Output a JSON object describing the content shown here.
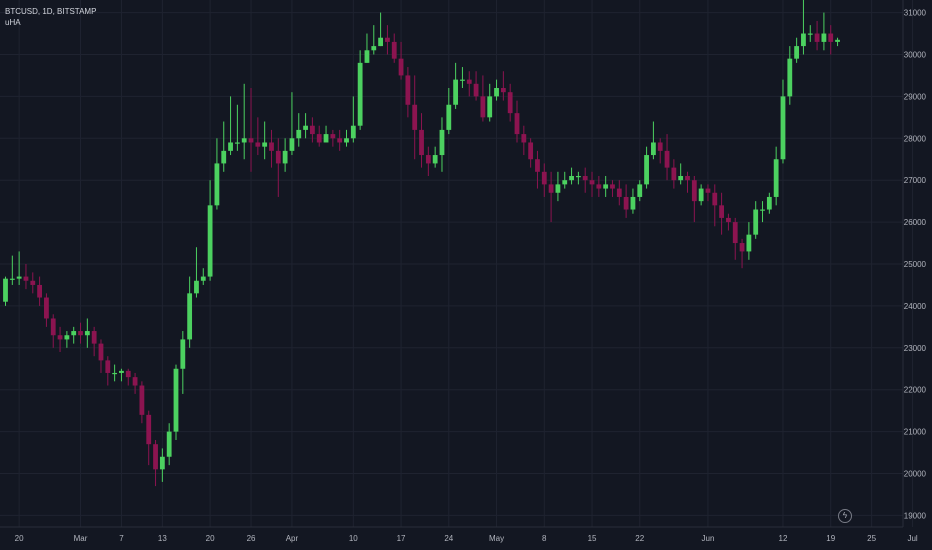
{
  "header": {
    "symbol_line": "BTCUSD, 1D, BITSTAMP",
    "indicator": "uHA"
  },
  "colors": {
    "background": "#131722",
    "up": "#4cd160",
    "down": "#8c1450",
    "grid": "#1f2330",
    "text": "#b2b5be"
  },
  "footer": {
    "quick_icon": "lightning-icon"
  },
  "chart_data": {
    "type": "candlestick",
    "title": "BTCUSD, 1D, BITSTAMP",
    "indicator": "uHA",
    "ylim": [
      18700,
      31300
    ],
    "y_ticks": [
      19000,
      20000,
      21000,
      22000,
      23000,
      24000,
      25000,
      26000,
      27000,
      28000,
      29000,
      30000,
      31000
    ],
    "x_ticks": [
      {
        "label": "20",
        "i": 2
      },
      {
        "label": "Mar",
        "i": 11
      },
      {
        "label": "7",
        "i": 17
      },
      {
        "label": "13",
        "i": 23
      },
      {
        "label": "20",
        "i": 30
      },
      {
        "label": "26",
        "i": 36
      },
      {
        "label": "Apr",
        "i": 42
      },
      {
        "label": "10",
        "i": 51
      },
      {
        "label": "17",
        "i": 58
      },
      {
        "label": "24",
        "i": 65
      },
      {
        "label": "May",
        "i": 72
      },
      {
        "label": "8",
        "i": 79
      },
      {
        "label": "15",
        "i": 86
      },
      {
        "label": "22",
        "i": 93
      },
      {
        "label": "Jun",
        "i": 103
      },
      {
        "label": "12",
        "i": 114
      },
      {
        "label": "19",
        "i": 121
      },
      {
        "label": "25",
        "i": 127
      },
      {
        "label": "Jul",
        "i": 133
      },
      {
        "label": "7",
        "i": 139
      }
    ],
    "grid": true,
    "candles": [
      [
        24100,
        24650,
        24000,
        24700
      ],
      [
        24650,
        24650,
        24500,
        25200
      ],
      [
        24650,
        24700,
        24500,
        25300
      ],
      [
        24700,
        24600,
        24400,
        25000
      ],
      [
        24600,
        24500,
        24300,
        24800
      ],
      [
        24500,
        24200,
        24000,
        24700
      ],
      [
        24200,
        23700,
        23500,
        24300
      ],
      [
        23700,
        23300,
        23000,
        23800
      ],
      [
        23300,
        23200,
        22900,
        23500
      ],
      [
        23200,
        23300,
        23000,
        23400
      ],
      [
        23300,
        23400,
        23100,
        23500
      ],
      [
        23400,
        23300,
        23100,
        23600
      ],
      [
        23300,
        23400,
        23000,
        23700
      ],
      [
        23400,
        23100,
        22800,
        23500
      ],
      [
        23100,
        22700,
        22400,
        23200
      ],
      [
        22700,
        22400,
        22100,
        22800
      ],
      [
        22400,
        22400,
        22200,
        22600
      ],
      [
        22400,
        22450,
        22200,
        22500
      ],
      [
        22450,
        22300,
        22100,
        22500
      ],
      [
        22300,
        22100,
        21900,
        22400
      ],
      [
        22100,
        21400,
        21200,
        22200
      ],
      [
        21400,
        20700,
        20200,
        21500
      ],
      [
        20700,
        20100,
        19700,
        20800
      ],
      [
        20100,
        20400,
        19800,
        20600
      ],
      [
        20400,
        21000,
        20200,
        21200
      ],
      [
        21000,
        22500,
        20800,
        22600
      ],
      [
        22500,
        23200,
        21900,
        23400
      ],
      [
        23200,
        24300,
        23000,
        24700
      ],
      [
        24300,
        24600,
        24200,
        25400
      ],
      [
        24600,
        24700,
        24500,
        24900
      ],
      [
        24700,
        26400,
        24600,
        27000
      ],
      [
        26400,
        27400,
        26300,
        28000
      ],
      [
        27400,
        27700,
        27200,
        28400
      ],
      [
        27700,
        27900,
        27600,
        29000
      ],
      [
        27900,
        27900,
        27700,
        28800
      ],
      [
        27900,
        28000,
        27500,
        29300
      ],
      [
        28000,
        27900,
        27200,
        29200
      ],
      [
        27900,
        27800,
        27600,
        28500
      ],
      [
        27800,
        27900,
        27500,
        28400
      ],
      [
        27900,
        27700,
        27300,
        28200
      ],
      [
        27700,
        27400,
        26600,
        28000
      ],
      [
        27400,
        27700,
        27200,
        28000
      ],
      [
        27700,
        28000,
        27600,
        29100
      ],
      [
        28000,
        28200,
        27800,
        28600
      ],
      [
        28200,
        28300,
        28000,
        28600
      ],
      [
        28300,
        28100,
        27900,
        28500
      ],
      [
        28100,
        27900,
        27800,
        28300
      ],
      [
        27900,
        28100,
        27900,
        28300
      ],
      [
        28100,
        28000,
        27800,
        28200
      ],
      [
        28000,
        27900,
        27700,
        28200
      ],
      [
        27900,
        28000,
        27800,
        28200
      ],
      [
        28000,
        28300,
        27900,
        29000
      ],
      [
        28300,
        29800,
        28200,
        30100
      ],
      [
        29800,
        30100,
        29800,
        30500
      ],
      [
        30100,
        30200,
        30000,
        30700
      ],
      [
        30200,
        30400,
        30200,
        31000
      ],
      [
        30400,
        30300,
        30000,
        30700
      ],
      [
        30300,
        29900,
        29800,
        30500
      ],
      [
        29900,
        29500,
        29400,
        30300
      ],
      [
        29500,
        28800,
        28500,
        29700
      ],
      [
        28800,
        28200,
        27500,
        29500
      ],
      [
        28200,
        27600,
        27300,
        28600
      ],
      [
        27600,
        27400,
        27100,
        27800
      ],
      [
        27400,
        27600,
        27300,
        27800
      ],
      [
        27600,
        28200,
        27200,
        28500
      ],
      [
        28200,
        28800,
        28100,
        29200
      ],
      [
        28800,
        29400,
        28700,
        29800
      ],
      [
        29400,
        29400,
        29200,
        29700
      ],
      [
        29400,
        29300,
        29000,
        29600
      ],
      [
        29300,
        29000,
        28900,
        29600
      ],
      [
        29000,
        28500,
        28400,
        29500
      ],
      [
        28500,
        29000,
        28400,
        29300
      ],
      [
        29000,
        29200,
        28900,
        29400
      ],
      [
        29200,
        29100,
        28900,
        29600
      ],
      [
        29100,
        28600,
        28400,
        29300
      ],
      [
        28600,
        28100,
        27900,
        28900
      ],
      [
        28100,
        27900,
        27600,
        28300
      ],
      [
        27900,
        27500,
        27300,
        28000
      ],
      [
        27500,
        27200,
        26800,
        27700
      ],
      [
        27200,
        26900,
        26600,
        27400
      ],
      [
        26900,
        26700,
        26000,
        27200
      ],
      [
        26700,
        26900,
        26500,
        27200
      ],
      [
        26900,
        27000,
        26800,
        27200
      ],
      [
        27000,
        27100,
        26900,
        27300
      ],
      [
        27100,
        27100,
        26900,
        27200
      ],
      [
        27100,
        27000,
        26700,
        27300
      ],
      [
        27000,
        26900,
        26600,
        27200
      ],
      [
        26900,
        26800,
        26600,
        27100
      ],
      [
        26800,
        26900,
        26600,
        27100
      ],
      [
        26900,
        26800,
        26600,
        27000
      ],
      [
        26800,
        26600,
        26400,
        27000
      ],
      [
        26600,
        26300,
        26100,
        26900
      ],
      [
        26300,
        26600,
        26200,
        26800
      ],
      [
        26600,
        26900,
        26500,
        27000
      ],
      [
        26900,
        27600,
        26800,
        27800
      ],
      [
        27600,
        27900,
        27500,
        28400
      ],
      [
        27900,
        27700,
        27400,
        28000
      ],
      [
        27700,
        27300,
        27000,
        28100
      ],
      [
        27300,
        27000,
        26800,
        27500
      ],
      [
        27000,
        27100,
        26900,
        27400
      ],
      [
        27100,
        27000,
        26700,
        27200
      ],
      [
        27000,
        26500,
        26000,
        27100
      ],
      [
        26500,
        26800,
        26400,
        26900
      ],
      [
        26800,
        26700,
        26500,
        26900
      ],
      [
        26700,
        26400,
        25900,
        26900
      ],
      [
        26400,
        26100,
        25700,
        26700
      ],
      [
        26100,
        26000,
        25800,
        26200
      ],
      [
        26000,
        25500,
        25100,
        26100
      ],
      [
        25500,
        25300,
        24900,
        25600
      ],
      [
        25300,
        25700,
        25100,
        26000
      ],
      [
        25700,
        26300,
        25600,
        26500
      ],
      [
        26300,
        26300,
        26000,
        26500
      ],
      [
        26300,
        26600,
        26200,
        26700
      ],
      [
        26600,
        27500,
        26400,
        27800
      ],
      [
        27500,
        29000,
        27400,
        29400
      ],
      [
        29000,
        29900,
        28800,
        30200
      ],
      [
        29900,
        30200,
        29800,
        30400
      ],
      [
        30200,
        30500,
        30000,
        31400
      ],
      [
        30500,
        30500,
        30300,
        30700
      ],
      [
        30500,
        30300,
        30100,
        30800
      ],
      [
        30300,
        30500,
        30100,
        31000
      ],
      [
        30500,
        30300,
        30000,
        30700
      ],
      [
        30300,
        30350,
        30200,
        30400
      ]
    ]
  }
}
